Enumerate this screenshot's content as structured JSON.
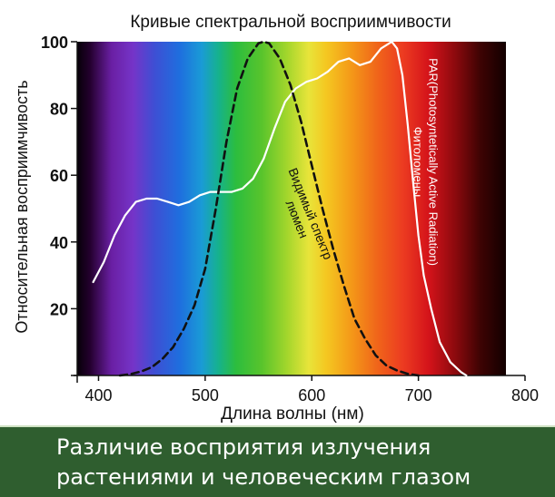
{
  "chart_data": {
    "type": "line",
    "title": "Кривые спектральной восприимчивости",
    "xlabel": "Длина волны (нм)",
    "ylabel": "Относительная восприимчивость",
    "xlim": [
      380,
      800
    ],
    "ylim": [
      0,
      100
    ],
    "x_ticks": [
      "400",
      "500",
      "600",
      "700",
      "800"
    ],
    "y_ticks": [
      "0",
      "20",
      "40",
      "60",
      "80",
      "100"
    ],
    "background": "visible spectrum gradient (violet to deep red)",
    "series": [
      {
        "name": "PAR(Photosyntetically Active Radiation) Фитоломены",
        "style": "solid",
        "color": "#ffffff",
        "points": [
          [
            395,
            28
          ],
          [
            405,
            34
          ],
          [
            415,
            42
          ],
          [
            425,
            48
          ],
          [
            435,
            52
          ],
          [
            445,
            53
          ],
          [
            455,
            53
          ],
          [
            465,
            52
          ],
          [
            475,
            51
          ],
          [
            485,
            52
          ],
          [
            495,
            54
          ],
          [
            505,
            55
          ],
          [
            515,
            55
          ],
          [
            525,
            55
          ],
          [
            535,
            56
          ],
          [
            545,
            59
          ],
          [
            555,
            65
          ],
          [
            565,
            74
          ],
          [
            575,
            82
          ],
          [
            585,
            86
          ],
          [
            595,
            88
          ],
          [
            605,
            89
          ],
          [
            615,
            91
          ],
          [
            625,
            94
          ],
          [
            635,
            95
          ],
          [
            645,
            93
          ],
          [
            655,
            94
          ],
          [
            665,
            98
          ],
          [
            675,
            100
          ],
          [
            680,
            98
          ],
          [
            685,
            90
          ],
          [
            690,
            75
          ],
          [
            695,
            58
          ],
          [
            700,
            42
          ],
          [
            705,
            30
          ],
          [
            712,
            20
          ],
          [
            720,
            10
          ],
          [
            730,
            4
          ],
          [
            740,
            1
          ],
          [
            745,
            0
          ]
        ]
      },
      {
        "name": "Видимый спектр люмен",
        "style": "dashed",
        "color": "#111111",
        "points": [
          [
            420,
            0
          ],
          [
            430,
            0.4
          ],
          [
            440,
            1.2
          ],
          [
            450,
            2.5
          ],
          [
            460,
            5
          ],
          [
            470,
            8.5
          ],
          [
            480,
            14
          ],
          [
            490,
            21
          ],
          [
            500,
            32
          ],
          [
            510,
            50
          ],
          [
            520,
            70
          ],
          [
            530,
            86
          ],
          [
            540,
            95
          ],
          [
            550,
            99.5
          ],
          [
            555,
            100
          ],
          [
            560,
            99.5
          ],
          [
            570,
            95
          ],
          [
            580,
            87
          ],
          [
            590,
            76
          ],
          [
            600,
            63
          ],
          [
            610,
            50
          ],
          [
            620,
            38
          ],
          [
            630,
            27
          ],
          [
            640,
            17
          ],
          [
            650,
            11
          ],
          [
            660,
            6
          ],
          [
            670,
            3
          ],
          [
            680,
            1.5
          ],
          [
            690,
            0.5
          ],
          [
            700,
            0
          ]
        ]
      }
    ],
    "annotations": [
      {
        "line1": "Видимый спектр",
        "line2": "люмен",
        "x": 595,
        "y": 48,
        "angle": 68
      },
      {
        "line1": "PAR(Photosyntetically Active Radiation)",
        "line2": "Фитоломены",
        "x": 710,
        "y": 64,
        "angle": 90
      }
    ]
  },
  "banner": {
    "line1": "Различие восприятия излучения",
    "line2": "растениями и человеческим глазом"
  }
}
